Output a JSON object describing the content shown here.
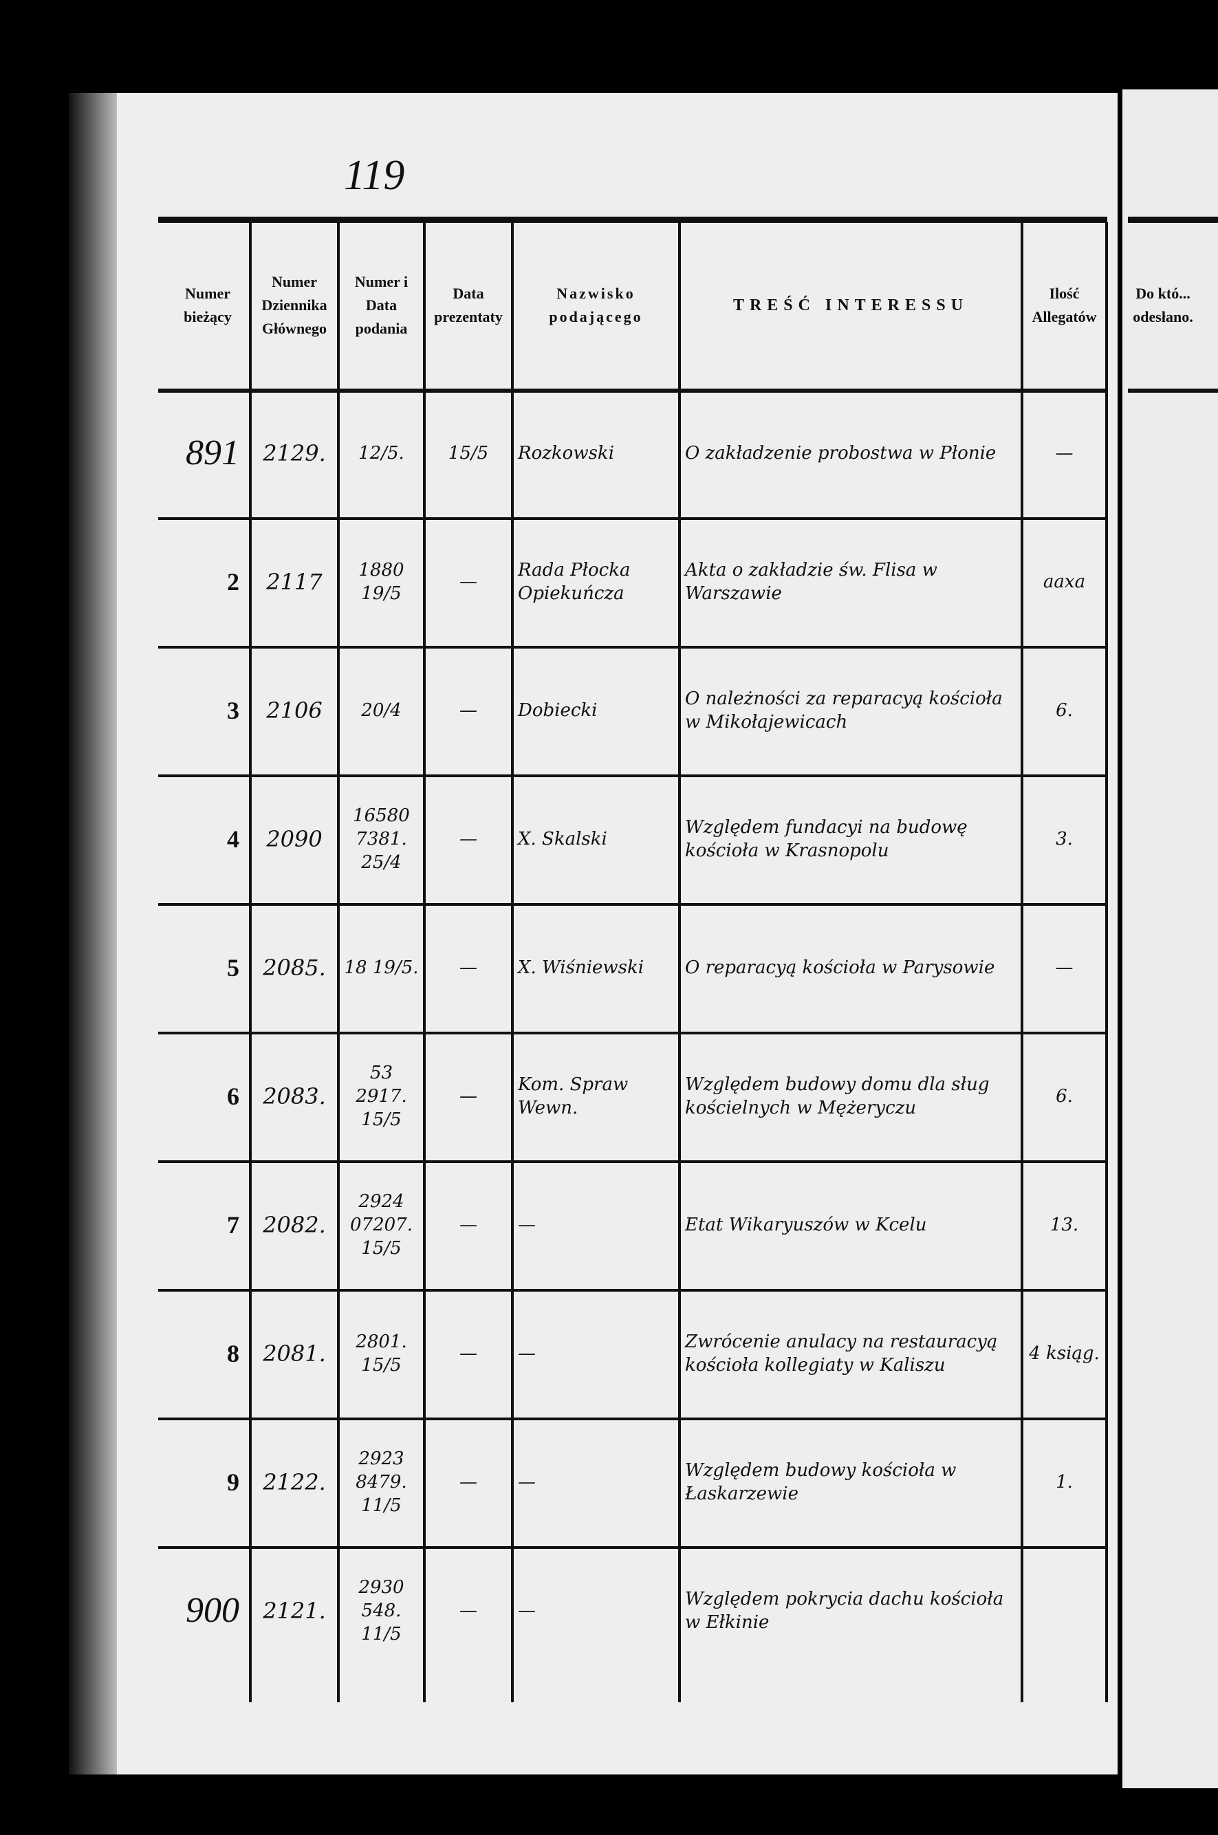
{
  "page_number": "119",
  "headers": [
    "Numer bieżący",
    "Numer Dziennika Głównego",
    "Numer i Data podania",
    "Data prezentaty",
    "Nazwisko podającego",
    "TREŚĆ INTERESSU",
    "Ilość Allegatów",
    "Do któ... odesłano."
  ],
  "rows": [
    {
      "nr": "891",
      "dz": "2129.",
      "pod": "12/5.",
      "prez": "15/5",
      "nazw": "Rozkowski",
      "tresc": "O zakładzenie probostwa w Płonie",
      "alleg": "—"
    },
    {
      "nr": "2",
      "dz": "2117",
      "pod": "1880 19/5",
      "prez": "—",
      "nazw": "Rada Płocka Opiekuńcza",
      "tresc": "Akta o zakładzie św. Flisa w Warszawie",
      "alleg": "aaxa"
    },
    {
      "nr": "3",
      "dz": "2106",
      "pod": "20/4",
      "prez": "—",
      "nazw": "Dobiecki",
      "tresc": "O należności za reparacyą kościoła w Mikołajewicach",
      "alleg": "6."
    },
    {
      "nr": "4",
      "dz": "2090",
      "pod": "16580 7381. 25/4",
      "prez": "—",
      "nazw": "X. Skalski",
      "tresc": "Względem fundacyi na budowę kościoła w Krasnopolu",
      "alleg": "3."
    },
    {
      "nr": "5",
      "dz": "2085.",
      "pod": "18 19/5.",
      "prez": "—",
      "nazw": "X. Wiśniewski",
      "tresc": "O reparacyą kościoła w Parysowie",
      "alleg": "—"
    },
    {
      "nr": "6",
      "dz": "2083.",
      "pod": "53 2917. 15/5",
      "prez": "—",
      "nazw": "Kom. Spraw Wewn.",
      "tresc": "Względem budowy domu dla sług kościelnych w Mężeryczu",
      "alleg": "6."
    },
    {
      "nr": "7",
      "dz": "2082.",
      "pod": "2924 07207. 15/5",
      "prez": "—",
      "nazw": "—",
      "tresc": "Etat Wikaryuszów w Kcelu",
      "alleg": "13."
    },
    {
      "nr": "8",
      "dz": "2081.",
      "pod": "2801. 15/5",
      "prez": "—",
      "nazw": "—",
      "tresc": "Zwrócenie anulacy na restauracyą kościoła kollegiaty w Kaliszu",
      "alleg": "4 ksiąg."
    },
    {
      "nr": "9",
      "dz": "2122.",
      "pod": "2923 8479. 11/5",
      "prez": "—",
      "nazw": "—",
      "tresc": "Względem budowy kościoła w Łaskarzewie",
      "alleg": "1."
    },
    {
      "nr": "900",
      "dz": "2121.",
      "pod": "2930 548. 11/5",
      "prez": "—",
      "nazw": "—",
      "tresc": "Względem pokrycia dachu kościoła w Ełkinie",
      "alleg": ""
    }
  ]
}
